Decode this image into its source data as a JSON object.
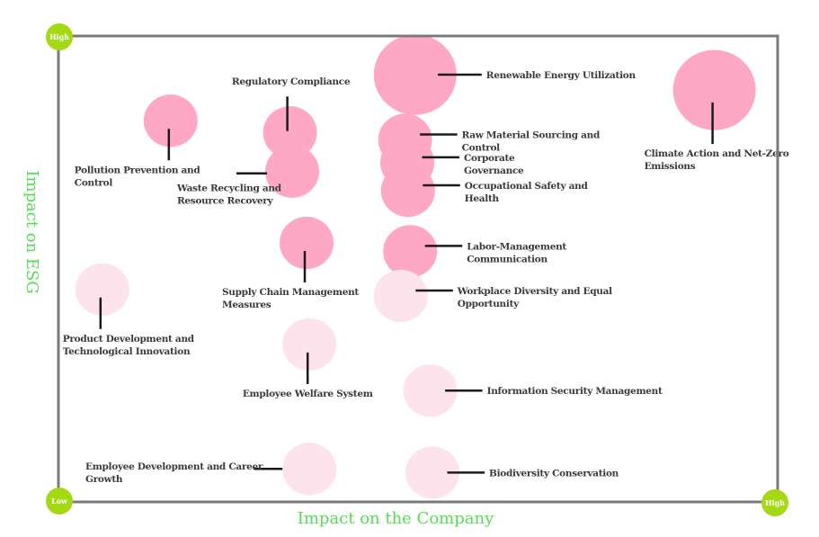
{
  "chart_data": {
    "type": "scatter",
    "subtype": "bubble-materiality-matrix",
    "title": "",
    "xlabel": "Impact on the Company",
    "ylabel": "Impact on ESG",
    "xlim": [
      0,
      100
    ],
    "ylim": [
      0,
      100
    ],
    "grid": false,
    "corner_labels": {
      "origin": "Low",
      "x_max": "High",
      "y_max": "High"
    },
    "colors": {
      "high_priority": "#ffa8c5",
      "low_priority": "#fde4ec",
      "axis_title": "#55dd55",
      "corner_badge": "#a6d915",
      "frame": "#7a7a7a",
      "leader": "#1a1a1a"
    },
    "points": [
      {
        "name": "Renewable Energy Utilization",
        "lines": [
          "Renewable Energy Utilization"
        ],
        "x": 49.6,
        "y": 91.7,
        "size": 3,
        "priority": "high",
        "label_side": "right"
      },
      {
        "name": "Climate Action and Net-Zero Emissions",
        "lines": [
          "Climate Action and Net-Zero",
          "Emissions"
        ],
        "x": 91.2,
        "y": 88.4,
        "size": 3,
        "priority": "high",
        "label_side": "below"
      },
      {
        "name": "Pollution Prevention and Control",
        "lines": [
          "Pollution Prevention and",
          "Control"
        ],
        "x": 15.6,
        "y": 81.8,
        "size": 2,
        "priority": "high",
        "label_side": "below"
      },
      {
        "name": "Regulatory Compliance",
        "lines": [
          "Regulatory Compliance"
        ],
        "x": 32.2,
        "y": 79.3,
        "size": 2,
        "priority": "high",
        "label_side": "above"
      },
      {
        "name": "Waste Recycling and Resource Recovery",
        "lines": [
          "Waste Recycling and",
          "Resource Recovery"
        ],
        "x": 32.5,
        "y": 70.9,
        "size": 2,
        "priority": "high",
        "label_side": "left-below"
      },
      {
        "name": "Raw Material Sourcing and Control",
        "lines": [
          "Raw Material Sourcing and",
          "Control"
        ],
        "x": 48.2,
        "y": 77.7,
        "size": 2,
        "priority": "high",
        "label_side": "right"
      },
      {
        "name": "Corporate Governance",
        "lines": [
          "Corporate",
          "Governance"
        ],
        "x": 48.5,
        "y": 72.8,
        "size": 2,
        "priority": "high",
        "label_side": "right"
      },
      {
        "name": "Occupational Safety and Health",
        "lines": [
          "Occupational Safety and",
          "Health"
        ],
        "x": 48.6,
        "y": 66.8,
        "size": 2,
        "priority": "high",
        "label_side": "right"
      },
      {
        "name": "Supply Chain Management Measures",
        "lines": [
          "Supply Chain Management",
          "Measures"
        ],
        "x": 34.5,
        "y": 55.6,
        "size": 2,
        "priority": "high",
        "label_side": "below"
      },
      {
        "name": "Labor-Management Communication",
        "lines": [
          "Labor-Management",
          "Communication"
        ],
        "x": 48.9,
        "y": 53.8,
        "size": 2,
        "priority": "high",
        "label_side": "right"
      },
      {
        "name": "Workplace Diversity and Equal Opportunity",
        "lines": [
          "Workplace Diversity and Equal",
          "Opportunity"
        ],
        "x": 47.6,
        "y": 44.2,
        "size": 2,
        "priority": "low",
        "label_side": "right"
      },
      {
        "name": "Product Development and Technological Innovation",
        "lines": [
          "Product Development and",
          "Technological Innovation"
        ],
        "x": 6.1,
        "y": 45.6,
        "size": 2,
        "priority": "low",
        "label_side": "below"
      },
      {
        "name": "Employee Welfare System",
        "lines": [
          "Employee Welfare System"
        ],
        "x": 34.9,
        "y": 33.8,
        "size": 2,
        "priority": "low",
        "label_side": "below"
      },
      {
        "name": "Information Security Management",
        "lines": [
          "Information Security Management"
        ],
        "x": 51.7,
        "y": 23.9,
        "size": 2,
        "priority": "low",
        "label_side": "right"
      },
      {
        "name": "Employee Development and Career Growth",
        "lines": [
          "Employee Development and Career",
          "Growth"
        ],
        "x": 34.9,
        "y": 7.1,
        "size": 2,
        "priority": "low",
        "label_side": "left"
      },
      {
        "name": "Biodiversity Conservation",
        "lines": [
          "Biodiversity Conservation"
        ],
        "x": 52.0,
        "y": 6.3,
        "size": 2,
        "priority": "low",
        "label_side": "right"
      }
    ]
  }
}
